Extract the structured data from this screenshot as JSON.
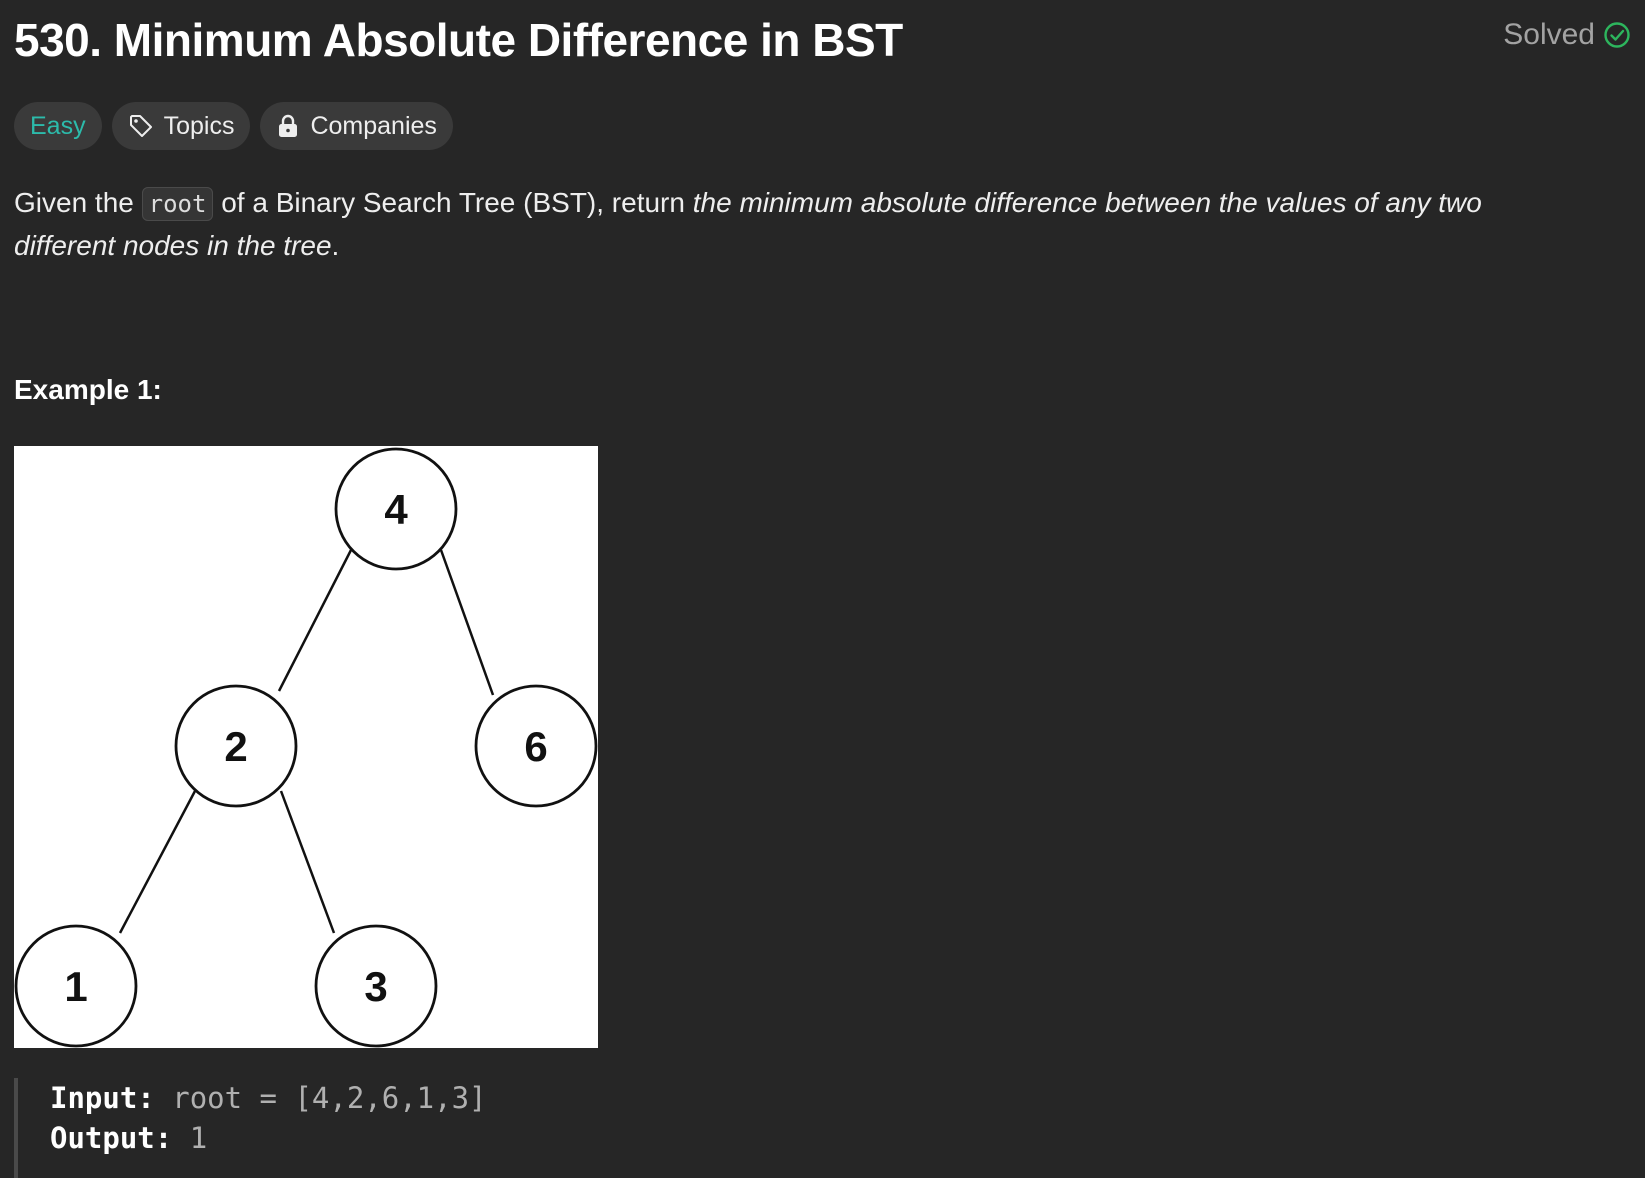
{
  "header": {
    "title": "530. Minimum Absolute Difference in BST",
    "status": "Solved"
  },
  "tags": {
    "difficulty": "Easy",
    "topics": "Topics",
    "companies": "Companies"
  },
  "description": {
    "before_code": "Given the ",
    "code": "root",
    "after_code": " of a Binary Search Tree (BST), return ",
    "emphasis": "the minimum absolute difference between the values of any two different nodes in the tree",
    "end": "."
  },
  "example": {
    "title": "Example 1:",
    "tree_nodes": [
      "4",
      "2",
      "6",
      "1",
      "3"
    ],
    "input_label": "Input:",
    "input_value": "root = [4,2,6,1,3]",
    "output_label": "Output:",
    "output_value": "1"
  },
  "colors": {
    "background": "#262626",
    "easy": "#2cbbab",
    "solved_check": "#2db55d"
  },
  "icons": {
    "solved": "check-circle-icon",
    "topics": "tag-icon",
    "companies": "lock-icon"
  }
}
